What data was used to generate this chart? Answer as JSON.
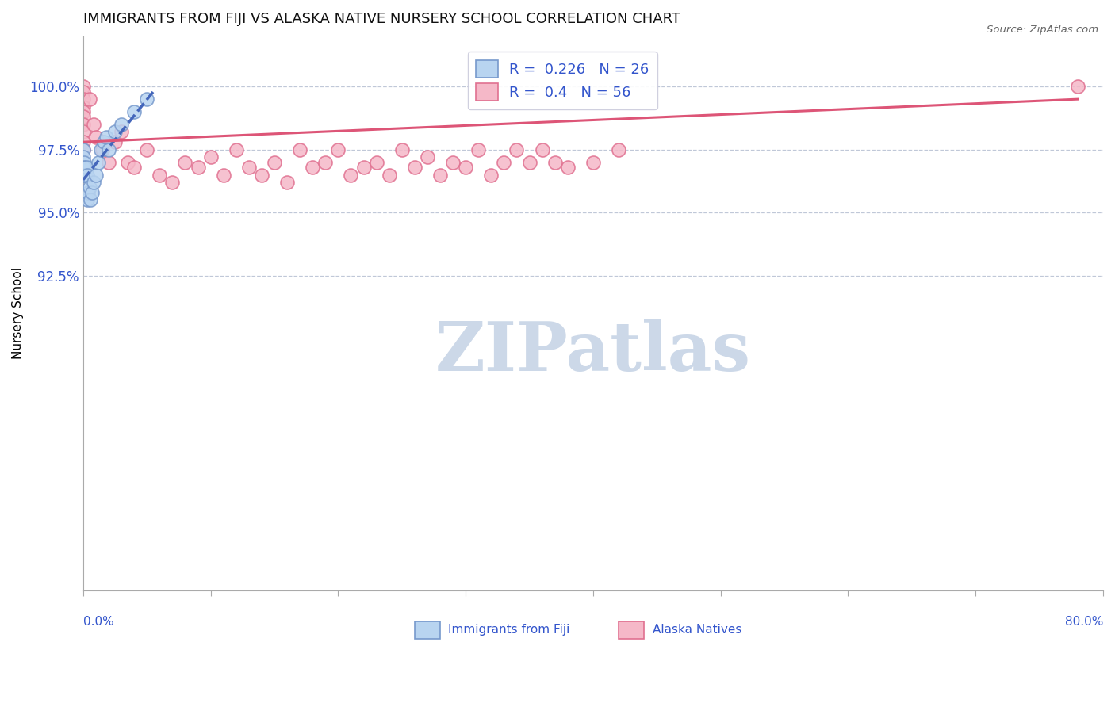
{
  "title": "IMMIGRANTS FROM FIJI VS ALASKA NATIVE NURSERY SCHOOL CORRELATION CHART",
  "source": "Source: ZipAtlas.com",
  "ylabel": "Nursery School",
  "x_min": 0.0,
  "x_max": 80.0,
  "y_min": 80.0,
  "y_max": 102.0,
  "fiji_R": 0.226,
  "fiji_N": 26,
  "alaska_R": 0.4,
  "alaska_N": 56,
  "fiji_color": "#b8d4f0",
  "fiji_edge_color": "#7799cc",
  "alaska_color": "#f5b8c8",
  "alaska_edge_color": "#e07090",
  "fiji_line_color": "#4466bb",
  "alaska_line_color": "#dd5577",
  "legend_color": "#3355cc",
  "watermark_color": "#ccd8e8",
  "fiji_x": [
    0.0,
    0.0,
    0.0,
    0.0,
    0.05,
    0.1,
    0.15,
    0.2,
    0.25,
    0.3,
    0.35,
    0.4,
    0.5,
    0.6,
    0.7,
    0.8,
    1.0,
    1.2,
    1.4,
    1.6,
    1.8,
    2.0,
    2.5,
    3.0,
    4.0,
    5.0
  ],
  "fiji_y": [
    97.5,
    97.2,
    96.8,
    96.5,
    97.0,
    96.8,
    96.5,
    96.5,
    96.8,
    96.5,
    95.5,
    95.8,
    96.0,
    95.5,
    95.8,
    96.2,
    96.5,
    97.0,
    97.5,
    97.8,
    98.0,
    97.5,
    98.2,
    98.5,
    99.0,
    99.5
  ],
  "alaska_x": [
    0.0,
    0.0,
    0.0,
    0.0,
    0.0,
    0.0,
    0.0,
    0.0,
    0.0,
    0.0,
    0.5,
    0.8,
    1.0,
    1.5,
    2.0,
    2.5,
    3.0,
    3.5,
    4.0,
    5.0,
    6.0,
    7.0,
    8.0,
    9.0,
    10.0,
    11.0,
    12.0,
    13.0,
    14.0,
    15.0,
    16.0,
    17.0,
    18.0,
    19.0,
    20.0,
    21.0,
    22.0,
    23.0,
    24.0,
    25.0,
    26.0,
    27.0,
    28.0,
    29.0,
    30.0,
    31.0,
    32.0,
    33.0,
    34.0,
    35.0,
    36.0,
    37.0,
    38.0,
    40.0,
    42.0,
    78.0
  ],
  "alaska_y": [
    100.0,
    99.8,
    99.5,
    99.2,
    99.0,
    98.8,
    98.5,
    98.2,
    97.8,
    97.5,
    99.5,
    98.5,
    98.0,
    97.5,
    97.0,
    97.8,
    98.2,
    97.0,
    96.8,
    97.5,
    96.5,
    96.2,
    97.0,
    96.8,
    97.2,
    96.5,
    97.5,
    96.8,
    96.5,
    97.0,
    96.2,
    97.5,
    96.8,
    97.0,
    97.5,
    96.5,
    96.8,
    97.0,
    96.5,
    97.5,
    96.8,
    97.2,
    96.5,
    97.0,
    96.8,
    97.5,
    96.5,
    97.0,
    97.5,
    97.0,
    97.5,
    97.0,
    96.8,
    97.0,
    97.5,
    100.0
  ],
  "y_ticks": [
    80.0,
    82.5,
    85.0,
    87.5,
    90.0,
    92.5,
    95.0,
    97.5,
    100.0
  ],
  "y_tick_labels": [
    "",
    "",
    "",
    "",
    "",
    "92.5%",
    "95.0%",
    "97.5%",
    "100.0%"
  ],
  "fiji_line_x0": 0.0,
  "fiji_line_x1": 5.5,
  "fiji_line_y0": 96.3,
  "fiji_line_y1": 99.8,
  "alaska_line_x0": 0.0,
  "alaska_line_x1": 78.0,
  "alaska_line_y0": 97.8,
  "alaska_line_y1": 99.5
}
